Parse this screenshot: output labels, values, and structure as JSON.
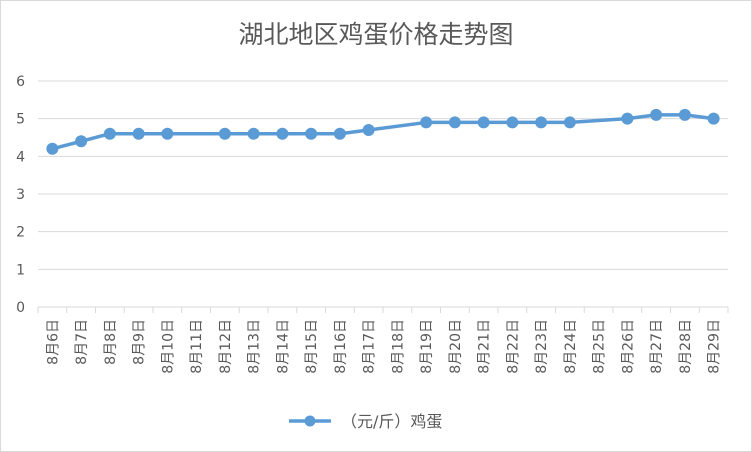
{
  "chart_data": {
    "type": "line",
    "title": "湖北地区鸡蛋价格走势图",
    "categories": [
      "8月6日",
      "8月7日",
      "8月8日",
      "8月9日",
      "8月10日",
      "8月11日",
      "8月12日",
      "8月13日",
      "8月14日",
      "8月15日",
      "8月16日",
      "8月17日",
      "8月18日",
      "8月19日",
      "8月20日",
      "8月21日",
      "8月22日",
      "8月23日",
      "8月24日",
      "8月25日",
      "8月26日",
      "8月27日",
      "8月28日",
      "8月29日"
    ],
    "series": [
      {
        "name": "（元/斤）鸡蛋",
        "color": "#5b9bd5",
        "values": [
          4.2,
          4.4,
          4.6,
          4.6,
          4.6,
          null,
          4.6,
          4.6,
          4.6,
          4.6,
          4.6,
          4.7,
          null,
          4.9,
          4.9,
          4.9,
          4.9,
          4.9,
          4.9,
          null,
          5.0,
          5.1,
          5.1,
          5.0
        ]
      }
    ],
    "ylim": [
      0,
      6
    ],
    "yticks": [
      0,
      1,
      2,
      3,
      4,
      5,
      6
    ],
    "grid": true,
    "legend": "bottom"
  }
}
